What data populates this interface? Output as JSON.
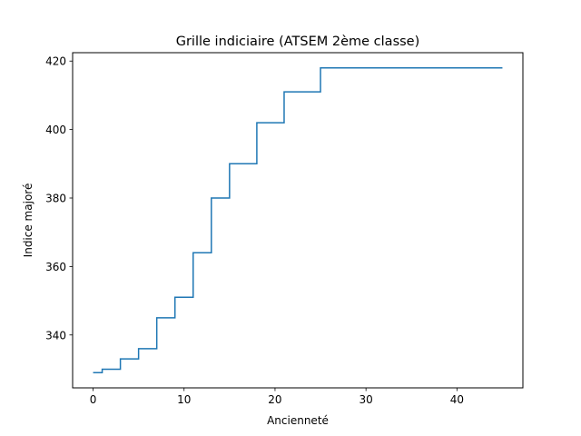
{
  "chart_data": {
    "type": "line",
    "drawstyle": "steps-post",
    "title": "Grille indiciaire (ATSEM 2ème classe)",
    "xlabel": "Ancienneté",
    "ylabel": "Indice majoré",
    "xlim": [
      -2.25,
      47.25
    ],
    "ylim": [
      324.55,
      422.45
    ],
    "xticks": [
      0,
      10,
      20,
      30,
      40
    ],
    "yticks": [
      340,
      360,
      380,
      400,
      420
    ],
    "grid": false,
    "series": [
      {
        "color": "#1f77b4",
        "x": [
          0,
          1,
          3,
          5,
          7,
          9,
          11,
          13,
          15,
          18,
          21,
          25,
          45
        ],
        "y": [
          329,
          330,
          333,
          336,
          345,
          351,
          364,
          380,
          390,
          402,
          411,
          418,
          418
        ]
      }
    ]
  }
}
